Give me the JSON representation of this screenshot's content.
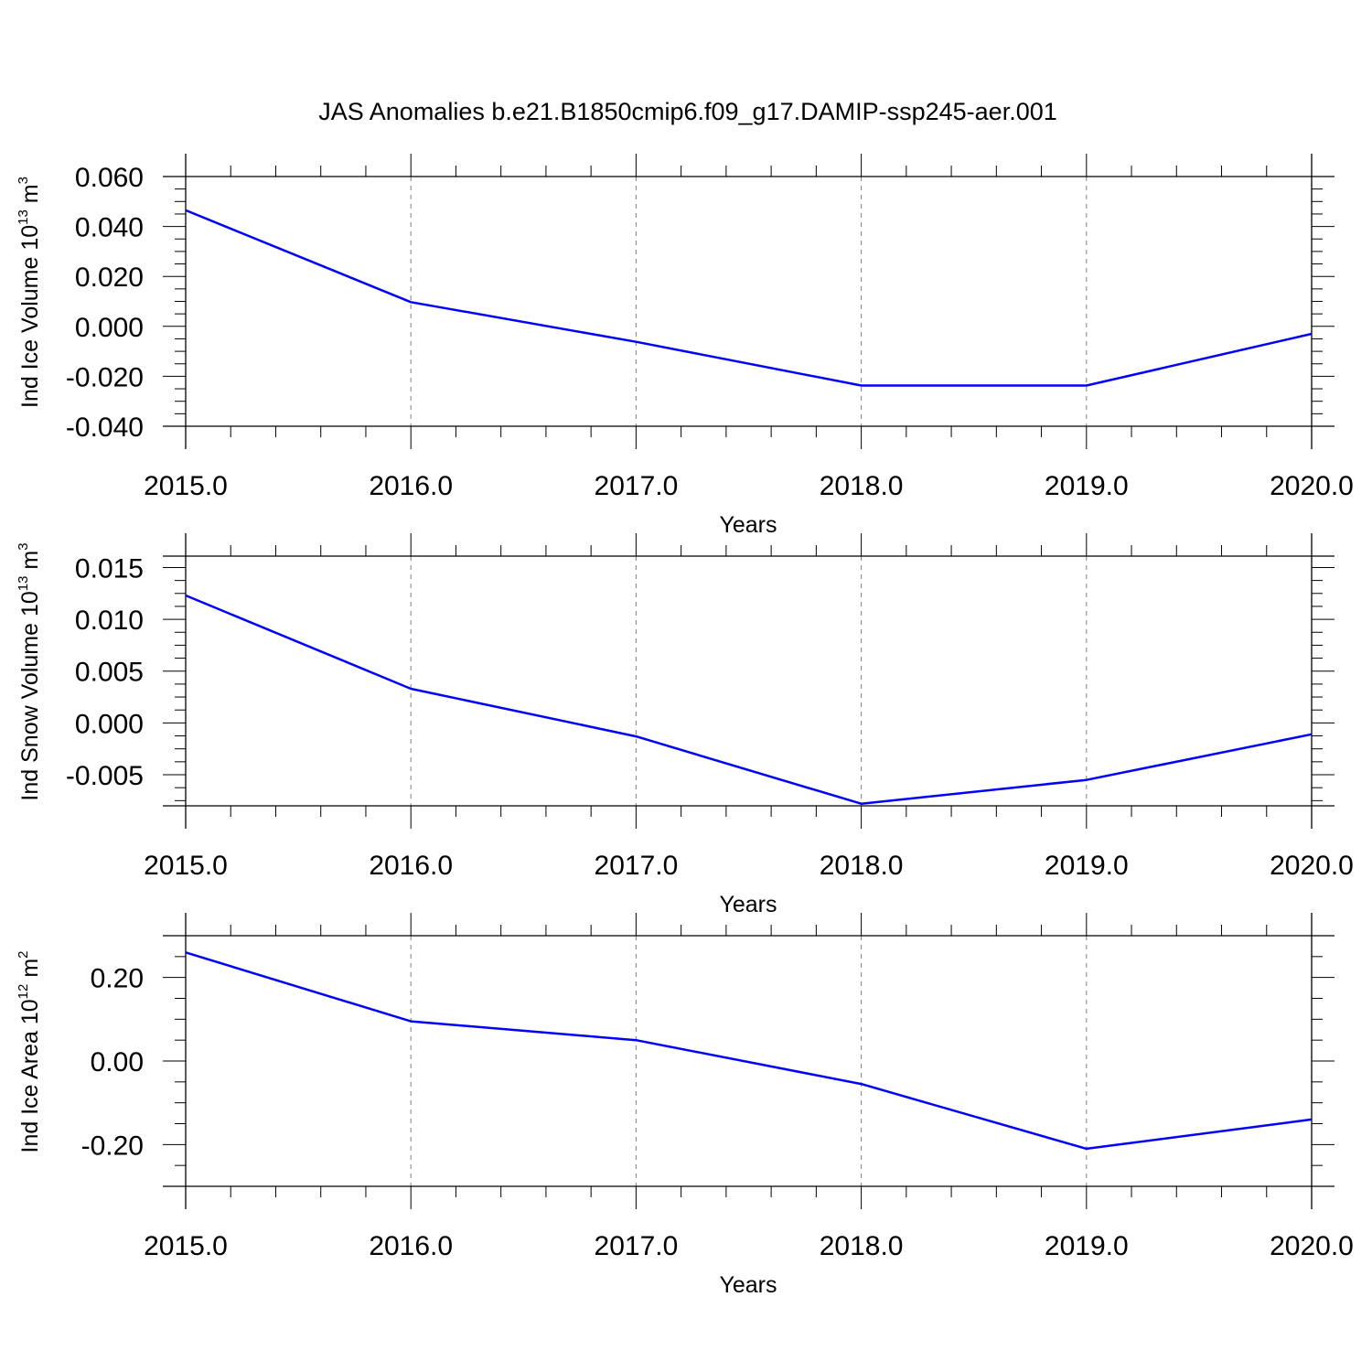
{
  "title": "JAS Anomalies b.e21.B1850cmip6.f09_g17.DAMIP-ssp245-aer.001",
  "colors": {
    "line": "#0000ff",
    "axis": "#000000",
    "grid": "#808080",
    "background": "#ffffff"
  },
  "chart_data": [
    {
      "type": "line",
      "ylabel": {
        "text": "Ind Ice Volume 10",
        "sup": "13",
        "unit": " m",
        "unit_sup": "3"
      },
      "xlabel": "Years",
      "x": [
        2015,
        2016,
        2017,
        2018,
        2019,
        2020
      ],
      "y": [
        0.0465,
        0.0097,
        -0.0062,
        -0.0237,
        -0.0237,
        -0.003
      ],
      "xlim": [
        2015,
        2020
      ],
      "ylim": [
        -0.04,
        0.06
      ],
      "yticks": [
        -0.04,
        -0.02,
        0.0,
        0.02,
        0.04,
        0.06
      ],
      "ytick_labels": [
        "-0.040",
        "-0.020",
        "0.000",
        "0.020",
        "0.040",
        "0.060"
      ],
      "xticks": [
        2015,
        2016,
        2017,
        2018,
        2019,
        2020
      ],
      "xtick_labels": [
        "2015.0",
        "2016.0",
        "2017.0",
        "2018.0",
        "2019.0",
        "2020.0"
      ],
      "grid": "vertical dashed"
    },
    {
      "type": "line",
      "ylabel": {
        "text": "Ind Snow Volume 10",
        "sup": "13",
        "unit": " m",
        "unit_sup": "3"
      },
      "xlabel": "Years",
      "x": [
        2015,
        2016,
        2017,
        2018,
        2019,
        2020
      ],
      "y": [
        0.0123,
        0.0033,
        -0.0013,
        -0.0078,
        -0.0055,
        -0.0011
      ],
      "xlim": [
        2015,
        2020
      ],
      "ylim": [
        -0.008,
        0.0161
      ],
      "yticks": [
        -0.005,
        0.0,
        0.005,
        0.01,
        0.015
      ],
      "ytick_labels": [
        "-0.005",
        "0.000",
        "0.005",
        "0.010",
        "0.015"
      ],
      "xticks": [
        2015,
        2016,
        2017,
        2018,
        2019,
        2020
      ],
      "xtick_labels": [
        "2015.0",
        "2016.0",
        "2017.0",
        "2018.0",
        "2019.0",
        "2020.0"
      ],
      "grid": "vertical dashed"
    },
    {
      "type": "line",
      "ylabel": {
        "text": "Ind Ice Area 10",
        "sup": "12",
        "unit": " m",
        "unit_sup": "2"
      },
      "xlabel": "Years",
      "x": [
        2015,
        2016,
        2017,
        2018,
        2019,
        2020
      ],
      "y": [
        0.26,
        0.095,
        0.05,
        -0.055,
        -0.21,
        -0.14
      ],
      "xlim": [
        2015,
        2020
      ],
      "ylim": [
        -0.3,
        0.3
      ],
      "yticks": [
        -0.2,
        0.0,
        0.2
      ],
      "ytick_labels": [
        "-0.20",
        "0.00",
        "0.20"
      ],
      "xticks": [
        2015,
        2016,
        2017,
        2018,
        2019,
        2020
      ],
      "xtick_labels": [
        "2015.0",
        "2016.0",
        "2017.0",
        "2018.0",
        "2019.0",
        "2020.0"
      ],
      "grid": "vertical dashed"
    }
  ]
}
